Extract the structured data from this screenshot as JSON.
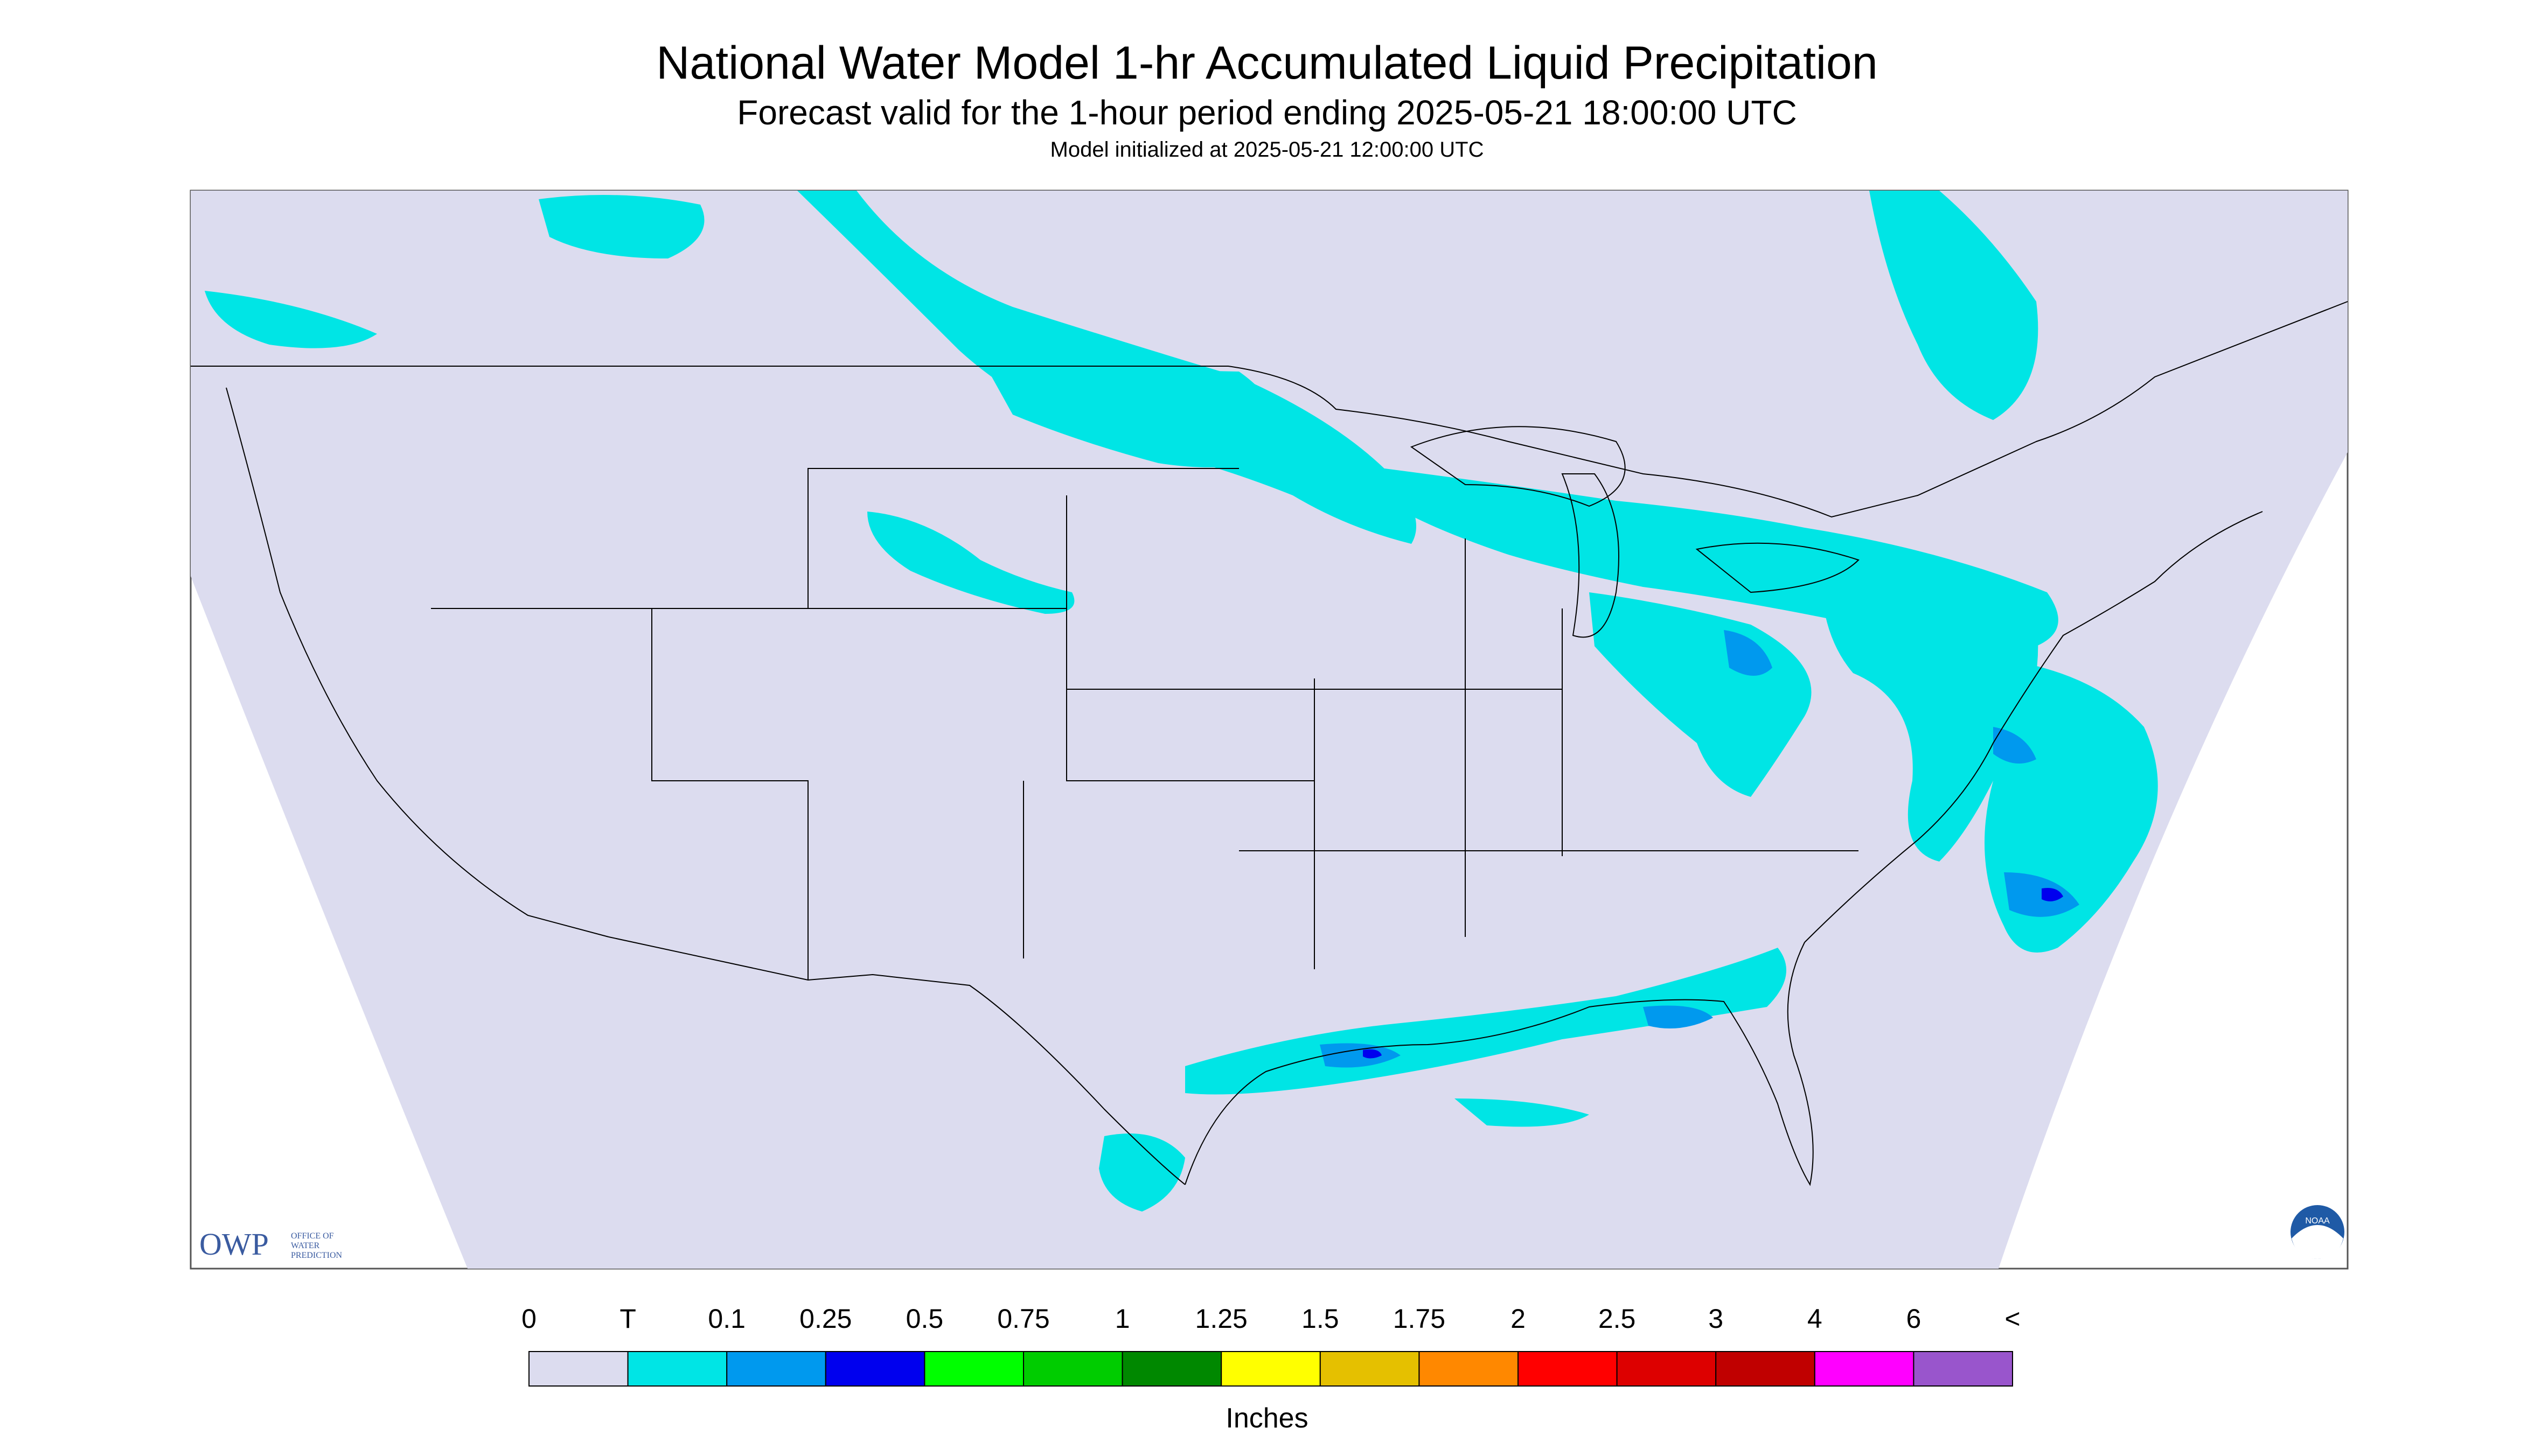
{
  "title": "National Water Model 1-hr Accumulated Liquid Precipitation",
  "subtitle": "Forecast valid for the 1-hour period ending 2025-05-21 18:00:00 UTC",
  "init_line": "Model initialized at 2025-05-21 12:00:00 UTC",
  "logos": {
    "owp_text": "OWP",
    "owp_sub_1": "OFFICE OF",
    "owp_sub_2": "WATER",
    "owp_sub_3": "PREDICTION",
    "noaa_text": "NOAA"
  },
  "colors": {
    "background_domain": "#dcdcef",
    "outside_domain": "#ffffff",
    "trace": "#00e5e5",
    "light_blue": "#0099ee",
    "blue": "#0000ee",
    "border_lines": "#000000"
  },
  "legend": {
    "units": "Inches",
    "labels": [
      "0",
      "T",
      "0.1",
      "0.25",
      "0.5",
      "0.75",
      "1",
      "1.25",
      "1.5",
      "1.75",
      "2",
      "2.5",
      "3",
      "4",
      "6",
      "<"
    ],
    "bins": [
      {
        "color": "#dcdcef"
      },
      {
        "color": "#00e5e5"
      },
      {
        "color": "#0099ee"
      },
      {
        "color": "#0000ee"
      },
      {
        "color": "#00ff00"
      },
      {
        "color": "#00cc00"
      },
      {
        "color": "#008800"
      },
      {
        "color": "#ffff00"
      },
      {
        "color": "#e5c000"
      },
      {
        "color": "#ff8800"
      },
      {
        "color": "#ff0000"
      },
      {
        "color": "#dd0000"
      },
      {
        "color": "#c00000"
      },
      {
        "color": "#ff00ff"
      },
      {
        "color": "#9955cc"
      }
    ]
  },
  "regions": [
    {
      "name": "canadian-prairies-band",
      "category": "T"
    },
    {
      "name": "northern-plains-band",
      "category": "T"
    },
    {
      "name": "great-lakes-band",
      "category": "T"
    },
    {
      "name": "ohio-valley-band",
      "category": "T"
    },
    {
      "name": "mid-atlantic-band",
      "category": "T"
    },
    {
      "name": "offshore-atlantic-band",
      "category": "T"
    },
    {
      "name": "quebec-band",
      "category": "T"
    },
    {
      "name": "gulf-coast-band",
      "category": "T"
    },
    {
      "name": "south-texas-band",
      "category": "T"
    },
    {
      "name": "michigan-core",
      "category": "0.1"
    },
    {
      "name": "delmarva-core",
      "category": "0.1"
    },
    {
      "name": "offshore-core",
      "category": "0.25"
    },
    {
      "name": "gulf-core",
      "category": "0.25"
    }
  ]
}
